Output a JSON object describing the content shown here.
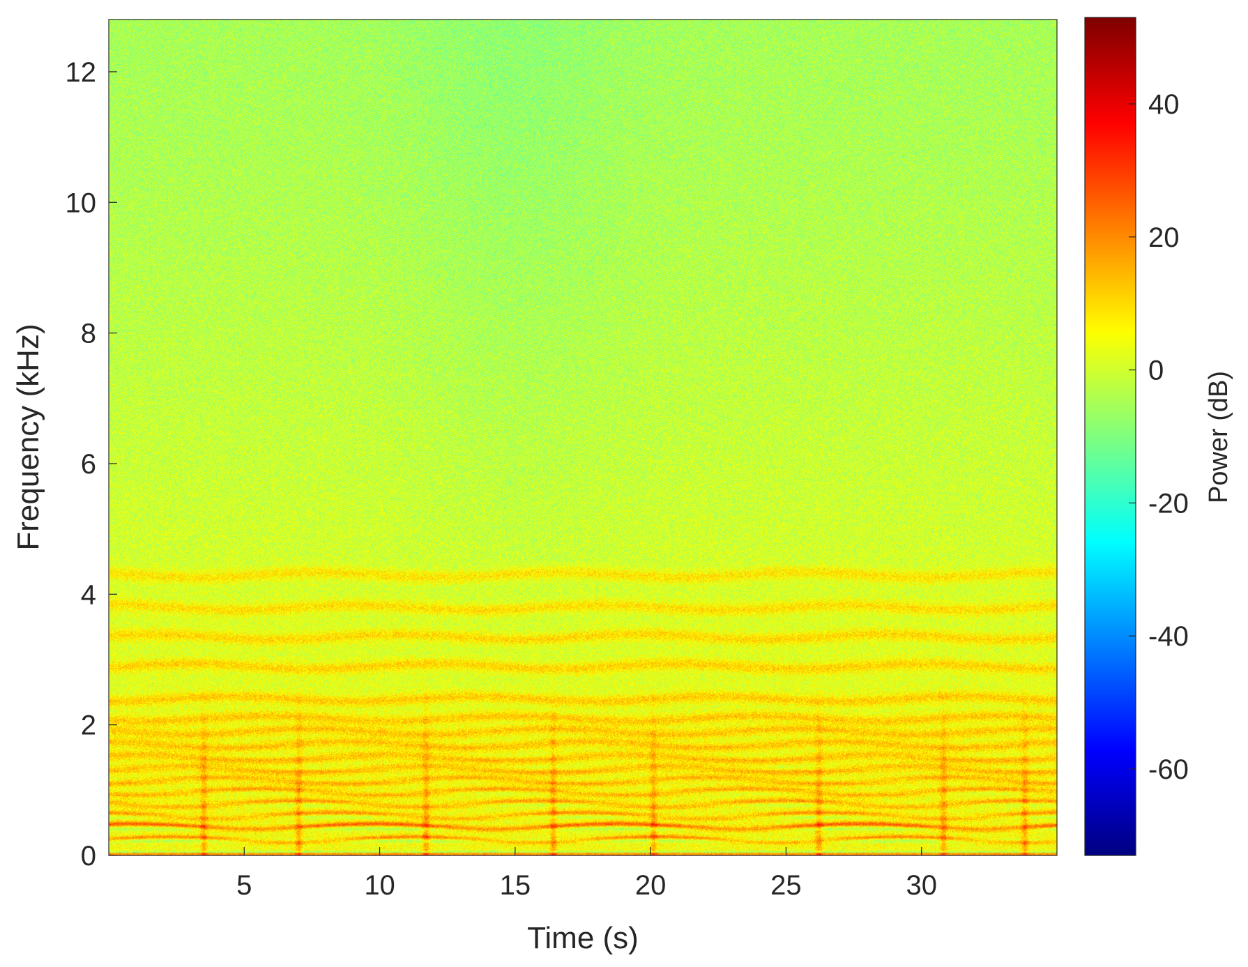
{
  "chart_data": {
    "type": "heatmap",
    "title": "",
    "xlabel": "Time (s)",
    "ylabel": "Frequency (kHz)",
    "xlim": [
      0,
      35
    ],
    "ylim": [
      0,
      12.8
    ],
    "xticks": [
      5,
      10,
      15,
      20,
      25,
      30
    ],
    "yticks": [
      0,
      2,
      4,
      6,
      8,
      10,
      12
    ],
    "colorbar": {
      "label": "Power (dB)",
      "lim": [
        -73,
        53
      ],
      "ticks": [
        -60,
        -40,
        -20,
        0,
        20,
        40
      ],
      "colormap": "jet",
      "colors": [
        "#00008f",
        "#0000ff",
        "#00ffff",
        "#7fff7f",
        "#ffff00",
        "#ff0000",
        "#800000"
      ]
    },
    "z_summary": {
      "background_high_freq_dB": -5,
      "background_low_freq_dB": 5,
      "harmonic_ridges_dB": 25,
      "strongest_band_khz": 0.45,
      "strongest_band_dB": 32
    },
    "harmonic_bands_khz": [
      0.25,
      0.45,
      0.62,
      0.8,
      0.98,
      1.15,
      1.32,
      1.5,
      1.7,
      1.9,
      2.1,
      2.4,
      2.9,
      3.35,
      3.8,
      4.3
    ],
    "transient_events_s": [
      3.5,
      7,
      11.7,
      16.4,
      20.1,
      26.2,
      30.8,
      33.8
    ]
  }
}
